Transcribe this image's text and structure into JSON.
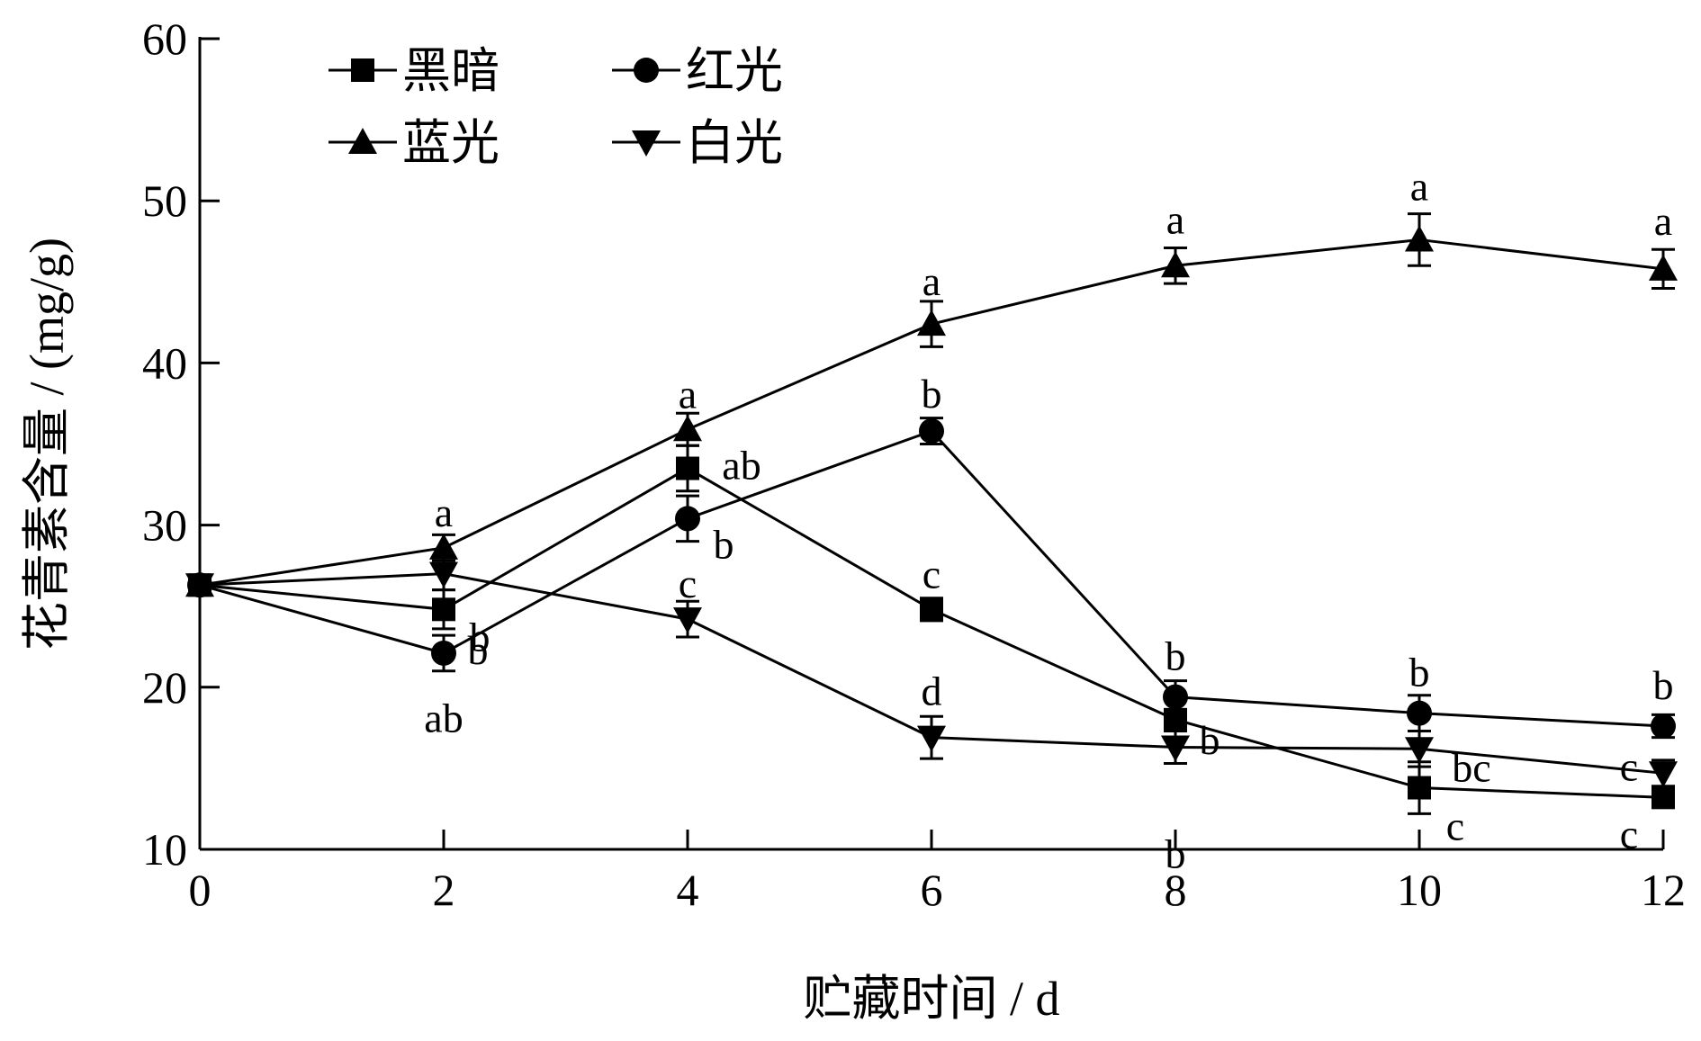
{
  "chart_data": {
    "type": "line",
    "xlabel": "贮藏时间 / d",
    "ylabel": "花青素含量 / (mg/g)",
    "xlim": [
      0,
      12
    ],
    "ylim": [
      10,
      60
    ],
    "xticks": [
      0,
      2,
      4,
      6,
      8,
      10,
      12
    ],
    "yticks": [
      10,
      20,
      30,
      40,
      50,
      60
    ],
    "grid": false,
    "legend_position": "top-left",
    "x": [
      0,
      2,
      4,
      6,
      8,
      10,
      12
    ],
    "series": [
      {
        "name": "黑暗",
        "marker": "square",
        "values": [
          26.3,
          24.8,
          33.5,
          24.8,
          18.0,
          13.8,
          13.2
        ],
        "errors": [
          0.5,
          1.2,
          1.4,
          0.7,
          1.2,
          1.6,
          0.6
        ],
        "labels": [
          "",
          "b",
          "ab",
          "c",
          "b",
          "c",
          "c"
        ]
      },
      {
        "name": "红光",
        "marker": "circle",
        "values": [
          26.3,
          22.1,
          30.4,
          35.8,
          19.4,
          18.4,
          17.6
        ],
        "errors": [
          0.5,
          1.1,
          1.4,
          0.8,
          1.0,
          1.1,
          0.7
        ],
        "labels": [
          "",
          "b",
          "b",
          "b",
          "b",
          "b",
          "b"
        ]
      },
      {
        "name": "蓝光",
        "marker": "triangle-up",
        "values": [
          26.3,
          28.6,
          35.9,
          42.4,
          46.0,
          47.6,
          45.8
        ],
        "errors": [
          0.5,
          0.8,
          1.0,
          1.4,
          1.1,
          1.6,
          1.2
        ],
        "labels": [
          "",
          "a",
          "a",
          "a",
          "a",
          "a",
          "a"
        ]
      },
      {
        "name": "白光",
        "marker": "triangle-down",
        "values": [
          26.3,
          27.0,
          24.2,
          16.9,
          16.3,
          16.2,
          14.7
        ],
        "errors": [
          0.5,
          1.0,
          1.1,
          1.3,
          1.0,
          1.1,
          0.8
        ],
        "labels": [
          "",
          "ab",
          "c",
          "d",
          "b",
          "bc",
          "c"
        ]
      }
    ]
  }
}
